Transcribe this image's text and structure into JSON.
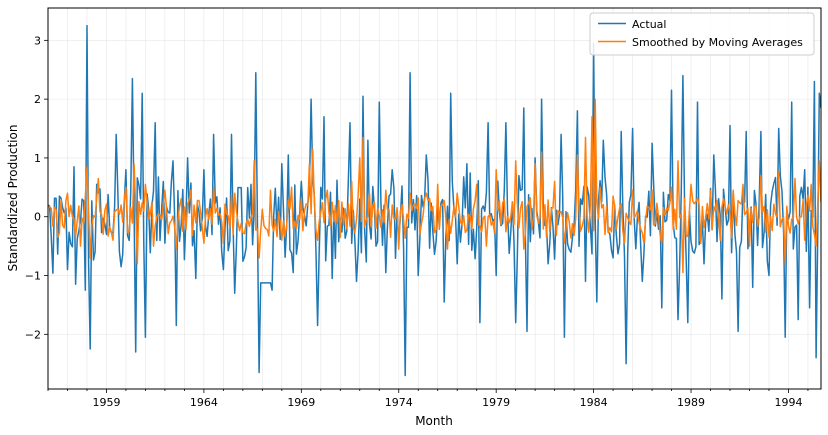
{
  "chart_data": {
    "type": "line",
    "title": "",
    "xlabel": "Month",
    "ylabel": "Standardized Production",
    "xlim": [
      1956.0,
      1995.67
    ],
    "ylim": [
      -2.93,
      3.55
    ],
    "x_ticks": [
      1959,
      1964,
      1969,
      1974,
      1979,
      1984,
      1989,
      1994
    ],
    "y_ticks": [
      -2,
      -1,
      0,
      1,
      2,
      3
    ],
    "y_tick_labels": [
      "−2",
      "−1",
      "0",
      "1",
      "2",
      "3"
    ],
    "grid": true,
    "legend_position": "top-right",
    "x": {
      "start": "1956-01",
      "end": "1995-08",
      "step": "1 month"
    },
    "series": [
      {
        "name": "Actual",
        "color": "#1f77b4",
        "anchors": [
          [
            1956.0,
            0.2
          ],
          [
            1956.25,
            -0.96
          ],
          [
            1956.55,
            0.35
          ],
          [
            1957.0,
            -0.9
          ],
          [
            1957.3,
            0.85
          ],
          [
            1957.45,
            -1.15
          ],
          [
            1957.75,
            0.3
          ],
          [
            1957.9,
            -1.25
          ],
          [
            1958.0,
            3.25
          ],
          [
            1958.15,
            -2.25
          ],
          [
            1958.5,
            0.55
          ],
          [
            1959.0,
            -0.3
          ],
          [
            1959.5,
            1.4
          ],
          [
            1959.75,
            -0.85
          ],
          [
            1960.0,
            0.8
          ],
          [
            1960.35,
            2.35
          ],
          [
            1960.5,
            -2.3
          ],
          [
            1960.8,
            2.1
          ],
          [
            1961.0,
            -2.05
          ],
          [
            1961.5,
            1.6
          ],
          [
            1962.0,
            -0.45
          ],
          [
            1962.4,
            0.95
          ],
          [
            1962.6,
            -1.85
          ],
          [
            1963.2,
            1.0
          ],
          [
            1963.6,
            -1.05
          ],
          [
            1964.0,
            0.8
          ],
          [
            1964.5,
            1.4
          ],
          [
            1965.0,
            -0.9
          ],
          [
            1965.4,
            1.4
          ],
          [
            1965.6,
            -1.3
          ],
          [
            1966.4,
            0.55
          ],
          [
            1966.65,
            2.45
          ],
          [
            1966.8,
            -2.65
          ],
          [
            1967.5,
            -1.25
          ],
          [
            1968.0,
            0.9
          ],
          [
            1968.3,
            1.05
          ],
          [
            1968.6,
            -0.95
          ],
          [
            1969.0,
            0.6
          ],
          [
            1969.5,
            2.0
          ],
          [
            1969.8,
            -1.85
          ],
          [
            1970.2,
            1.7
          ],
          [
            1970.6,
            -1.05
          ],
          [
            1971.5,
            1.6
          ],
          [
            1971.8,
            -1.1
          ],
          [
            1972.2,
            2.05
          ],
          [
            1972.4,
            1.3
          ],
          [
            1972.8,
            -0.5
          ],
          [
            1973.0,
            1.95
          ],
          [
            1973.3,
            -0.95
          ],
          [
            1973.7,
            0.8
          ],
          [
            1974.3,
            -2.7
          ],
          [
            1974.55,
            2.45
          ],
          [
            1975.0,
            -1.0
          ],
          [
            1975.4,
            1.05
          ],
          [
            1976.3,
            -1.45
          ],
          [
            1976.7,
            2.1
          ],
          [
            1977.0,
            -0.8
          ],
          [
            1977.5,
            0.9
          ],
          [
            1978.2,
            -1.8
          ],
          [
            1978.6,
            1.6
          ],
          [
            1979.0,
            -1.0
          ],
          [
            1979.5,
            1.6
          ],
          [
            1980.0,
            -1.8
          ],
          [
            1980.4,
            1.85
          ],
          [
            1980.6,
            -1.95
          ],
          [
            1981.0,
            1.0
          ],
          [
            1981.3,
            2.0
          ],
          [
            1981.7,
            -0.8
          ],
          [
            1982.3,
            1.4
          ],
          [
            1982.5,
            -2.05
          ],
          [
            1983.2,
            1.8
          ],
          [
            1983.6,
            -1.1
          ],
          [
            1984.0,
            2.95
          ],
          [
            1984.2,
            -1.45
          ],
          [
            1984.5,
            1.3
          ],
          [
            1985.0,
            -0.7
          ],
          [
            1985.4,
            1.45
          ],
          [
            1985.7,
            -2.5
          ],
          [
            1986.0,
            1.5
          ],
          [
            1986.5,
            -1.1
          ],
          [
            1987.0,
            1.25
          ],
          [
            1987.5,
            -1.55
          ],
          [
            1988.0,
            2.15
          ],
          [
            1988.3,
            -1.75
          ],
          [
            1988.6,
            2.4
          ],
          [
            1988.8,
            -1.8
          ],
          [
            1989.3,
            1.95
          ],
          [
            1989.7,
            -0.8
          ],
          [
            1990.2,
            1.05
          ],
          [
            1990.6,
            -1.4
          ],
          [
            1991.0,
            1.55
          ],
          [
            1991.4,
            -1.95
          ],
          [
            1991.8,
            1.45
          ],
          [
            1992.2,
            -1.2
          ],
          [
            1992.6,
            1.45
          ],
          [
            1993.0,
            -1.0
          ],
          [
            1993.5,
            1.5
          ],
          [
            1993.8,
            -2.05
          ],
          [
            1994.2,
            1.95
          ],
          [
            1994.5,
            -1.75
          ],
          [
            1994.8,
            0.8
          ],
          [
            1995.1,
            -1.55
          ],
          [
            1995.3,
            2.3
          ],
          [
            1995.45,
            -2.4
          ],
          [
            1995.55,
            2.1
          ],
          [
            1995.67,
            1.85
          ]
        ]
      },
      {
        "name": "Smoothed by Moving Averages",
        "color": "#ff7f0e",
        "anchors": [
          [
            1956.0,
            0.18
          ],
          [
            1956.5,
            -0.35
          ],
          [
            1957.0,
            0.4
          ],
          [
            1957.7,
            -0.5
          ],
          [
            1958.0,
            0.85
          ],
          [
            1958.15,
            -0.7
          ],
          [
            1958.6,
            0.65
          ],
          [
            1959.3,
            -0.4
          ],
          [
            1960.0,
            0.5
          ],
          [
            1960.4,
            0.9
          ],
          [
            1960.6,
            -0.8
          ],
          [
            1961.0,
            0.55
          ],
          [
            1961.4,
            -0.5
          ],
          [
            1962.0,
            0.45
          ],
          [
            1962.6,
            -0.55
          ],
          [
            1963.3,
            0.45
          ],
          [
            1964.0,
            -0.45
          ],
          [
            1964.5,
            0.5
          ],
          [
            1965.0,
            -0.45
          ],
          [
            1965.6,
            0.4
          ],
          [
            1966.6,
            0.95
          ],
          [
            1966.8,
            -0.7
          ],
          [
            1967.4,
            0.45
          ],
          [
            1968.0,
            -0.4
          ],
          [
            1968.5,
            0.5
          ],
          [
            1969.4,
            0.9
          ],
          [
            1969.6,
            1.15
          ],
          [
            1969.8,
            -0.4
          ],
          [
            1970.3,
            0.45
          ],
          [
            1971.0,
            -0.35
          ],
          [
            1971.6,
            0.6
          ],
          [
            1972.0,
            1.0
          ],
          [
            1972.2,
            1.35
          ],
          [
            1972.5,
            0.4
          ],
          [
            1972.8,
            -0.2
          ],
          [
            1973.3,
            0.45
          ],
          [
            1974.0,
            -0.55
          ],
          [
            1974.6,
            0.4
          ],
          [
            1975.4,
            0.4
          ],
          [
            1976.0,
            0.55
          ],
          [
            1976.5,
            -0.55
          ],
          [
            1977.0,
            0.4
          ],
          [
            1978.0,
            0.55
          ],
          [
            1978.5,
            -0.5
          ],
          [
            1979.0,
            0.8
          ],
          [
            1980.0,
            0.95
          ],
          [
            1980.4,
            -0.55
          ],
          [
            1981.0,
            0.9
          ],
          [
            1981.3,
            1.1
          ],
          [
            1981.6,
            -0.35
          ],
          [
            1982.0,
            0.6
          ],
          [
            1982.5,
            -0.45
          ],
          [
            1983.2,
            1.05
          ],
          [
            1983.6,
            1.35
          ],
          [
            1983.9,
            1.7
          ],
          [
            1984.05,
            2.0
          ],
          [
            1984.3,
            0.5
          ],
          [
            1984.6,
            -0.3
          ],
          [
            1985.0,
            0.35
          ],
          [
            1985.6,
            -0.45
          ],
          [
            1986.0,
            0.45
          ],
          [
            1986.6,
            -0.45
          ],
          [
            1987.0,
            0.45
          ],
          [
            1987.5,
            -0.45
          ],
          [
            1988.0,
            0.5
          ],
          [
            1988.3,
            0.95
          ],
          [
            1988.6,
            -0.95
          ],
          [
            1989.0,
            0.55
          ],
          [
            1989.5,
            -0.45
          ],
          [
            1990.0,
            0.45
          ],
          [
            1990.5,
            -0.4
          ],
          [
            1991.2,
            0.45
          ],
          [
            1991.7,
            0.55
          ],
          [
            1992.0,
            -0.5
          ],
          [
            1992.6,
            0.7
          ],
          [
            1993.0,
            -0.35
          ],
          [
            1993.5,
            0.75
          ],
          [
            1993.8,
            -0.8
          ],
          [
            1994.3,
            0.65
          ],
          [
            1994.8,
            -0.4
          ],
          [
            1995.2,
            0.55
          ],
          [
            1995.45,
            -0.5
          ],
          [
            1995.6,
            0.95
          ],
          [
            1995.67,
            0.25
          ]
        ]
      }
    ]
  }
}
